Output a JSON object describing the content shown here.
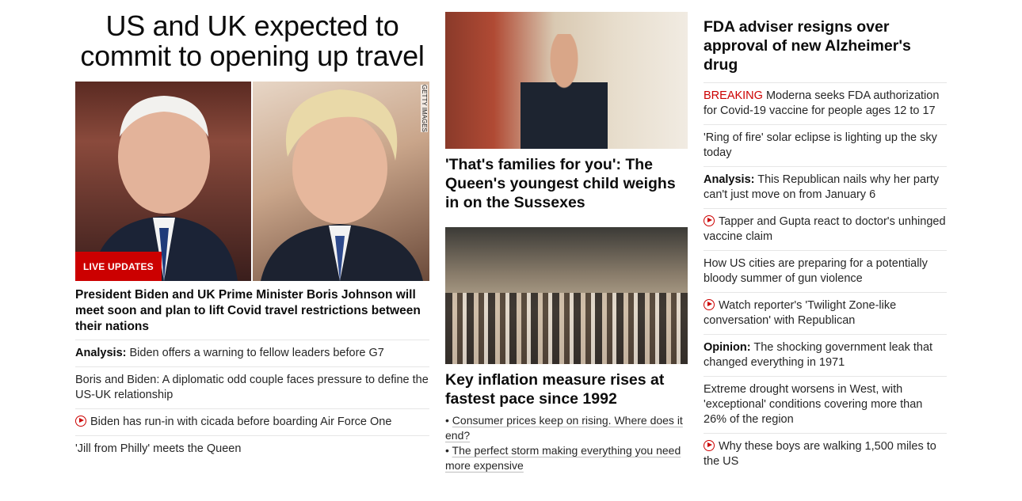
{
  "lead_story": {
    "title": "US and UK expected to commit to opening up travel",
    "image_credit": "GETTY IMAGES",
    "badge": "LIVE UPDATES",
    "description": "President Biden and UK Prime Minister Boris Johnson will meet soon and plan to lift Covid travel restrictions between their nations",
    "related": [
      {
        "prefix": "Analysis:",
        "text": "Biden offers a warning to fellow leaders before G7"
      },
      {
        "prefix": "",
        "text": "Boris and Biden: A diplomatic odd couple faces pressure to define the US-UK relationship"
      },
      {
        "prefix": "",
        "icon": "video-play-icon",
        "text": "Biden has run-in with cicada before boarding Air Force One"
      },
      {
        "prefix": "",
        "text": "'Jill from Philly' meets the Queen"
      }
    ]
  },
  "middle_column": {
    "card1": {
      "title": "'That's families for you': The Queen's youngest child weighs in on the Sussexes"
    },
    "card2": {
      "title": "Key inflation measure rises at fastest pace since 1992",
      "bullets": [
        "Consumer prices keep on rising. Where does it end?",
        "The perfect storm making everything you need more expensive"
      ]
    }
  },
  "right_column": {
    "headline": "FDA adviser resigns over approval of new Alzheimer's drug",
    "items": [
      {
        "prefix": "BREAKING",
        "prefix_style": "breaking",
        "text": "Moderna seeks FDA authorization for Covid-19 vaccine for people ages 12 to 17"
      },
      {
        "prefix": "",
        "text": "'Ring of fire' solar eclipse is lighting up the sky today"
      },
      {
        "prefix": "Analysis:",
        "prefix_style": "bold",
        "text": "This Republican nails why her party can't just move on from January 6"
      },
      {
        "prefix": "",
        "icon": "video-play-icon",
        "text": "Tapper and Gupta react to doctor's unhinged vaccine claim"
      },
      {
        "prefix": "",
        "text": "How US cities are preparing for a potentially bloody summer of gun violence"
      },
      {
        "prefix": "",
        "icon": "video-play-icon",
        "text": "Watch reporter's 'Twilight Zone-like conversation' with Republican"
      },
      {
        "prefix": "Opinion:",
        "prefix_style": "bold",
        "text": "The shocking government leak that changed everything in 1971"
      },
      {
        "prefix": "",
        "text": "Extreme drought worsens in West, with 'exceptional' conditions covering more than 26% of the region"
      },
      {
        "prefix": "",
        "icon": "video-play-icon",
        "text": "Why these boys are walking 1,500 miles to the US"
      }
    ]
  },
  "colors": {
    "accent_red": "#cc0000",
    "text": "#0c0c0c",
    "divider": "#e6e6e6"
  }
}
